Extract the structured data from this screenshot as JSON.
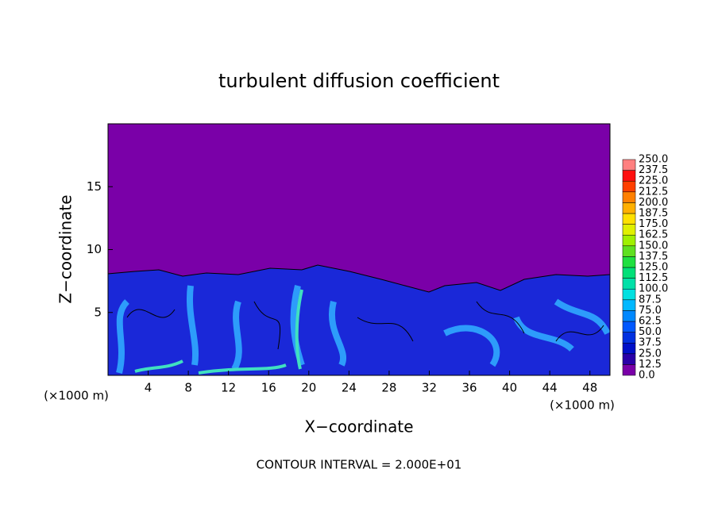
{
  "chart_data": {
    "type": "contour",
    "title": "turbulent diffusion coefficient",
    "xlabel": "X−coordinate",
    "ylabel": "Z−coordinate",
    "x_unit_labels": [
      "(×1000 m)",
      "(×1000 m)"
    ],
    "annotation": "CONTOUR INTERVAL = 2.000E+01",
    "xlim": [
      0,
      50
    ],
    "xticks": [
      4,
      8,
      12,
      16,
      20,
      24,
      28,
      32,
      36,
      40,
      44,
      48
    ],
    "ylim": [
      0,
      20
    ],
    "yticks": [
      5,
      10,
      15
    ],
    "colorbar": {
      "levels": [
        {
          "value": 0,
          "label": "0.0"
        },
        12.5,
        {
          "value": 25,
          "label": "25.0"
        },
        37.5,
        {
          "value": 50,
          "label": "50.0"
        },
        62.5,
        {
          "value": 75,
          "label": "75.0"
        },
        87.5,
        {
          "value": 100,
          "label": "100.0"
        },
        112.5,
        {
          "value": 125,
          "label": "125.0"
        },
        137.5,
        {
          "value": 150,
          "label": "150.0"
        },
        162.5,
        {
          "value": 175,
          "label": "175.0"
        },
        187.5,
        {
          "value": 200,
          "label": "200.0"
        },
        212.5,
        {
          "value": 225,
          "label": "225.0"
        },
        237.5,
        {
          "value": 250,
          "label": "250.0"
        }
      ],
      "colors": [
        "#7a00a8",
        "#2a00a8",
        "#0010c8",
        "#0030e0",
        "#0058ff",
        "#0088ff",
        "#00b8ff",
        "#00e0e0",
        "#00e0a8",
        "#00e078",
        "#20e040",
        "#60e020",
        "#a0f000",
        "#e0f000",
        "#ffe000",
        "#ffb000",
        "#ff8000",
        "#ff4000",
        "#ff1010",
        "#ff8080"
      ]
    }
  }
}
